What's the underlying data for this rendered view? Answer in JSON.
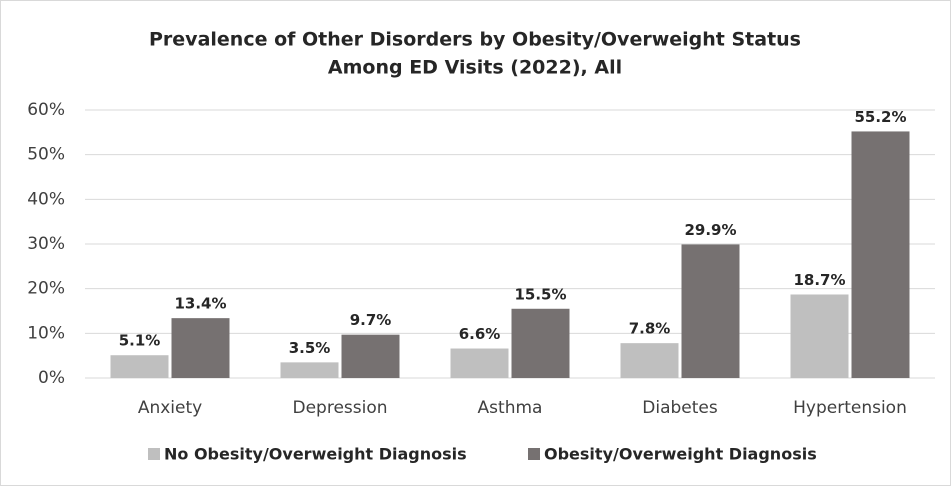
{
  "chart_data": {
    "type": "bar",
    "title": [
      "Prevalence of Other Disorders by Obesity/Overweight Status",
      "Among ED Visits (2022), All"
    ],
    "categories": [
      "Anxiety",
      "Depression",
      "Asthma",
      "Diabetes",
      "Hypertension"
    ],
    "series": [
      {
        "name": "No Obesity/Overweight Diagnosis",
        "color": "#bfbfbf",
        "values": [
          5.1,
          3.5,
          6.6,
          7.8,
          18.7
        ],
        "value_labels": [
          "5.1%",
          "3.5%",
          "6.6%",
          "7.8%",
          "18.7%"
        ]
      },
      {
        "name": "Obesity/Overweight Diagnosis",
        "color": "#767171",
        "values": [
          13.4,
          9.7,
          15.5,
          29.9,
          55.2
        ],
        "value_labels": [
          "13.4%",
          "9.7%",
          "15.5%",
          "29.9%",
          "55.2%"
        ]
      }
    ],
    "ylim": [
      0,
      60
    ],
    "yticks": [
      {
        "value": 0,
        "label": "0%"
      },
      {
        "value": 10,
        "label": "10%"
      },
      {
        "value": 20,
        "label": "20%"
      },
      {
        "value": 30,
        "label": "30%"
      },
      {
        "value": 40,
        "label": "40%"
      },
      {
        "value": 50,
        "label": "50%"
      },
      {
        "value": 60,
        "label": "60%"
      }
    ],
    "grid": true,
    "legend": "bottom"
  }
}
